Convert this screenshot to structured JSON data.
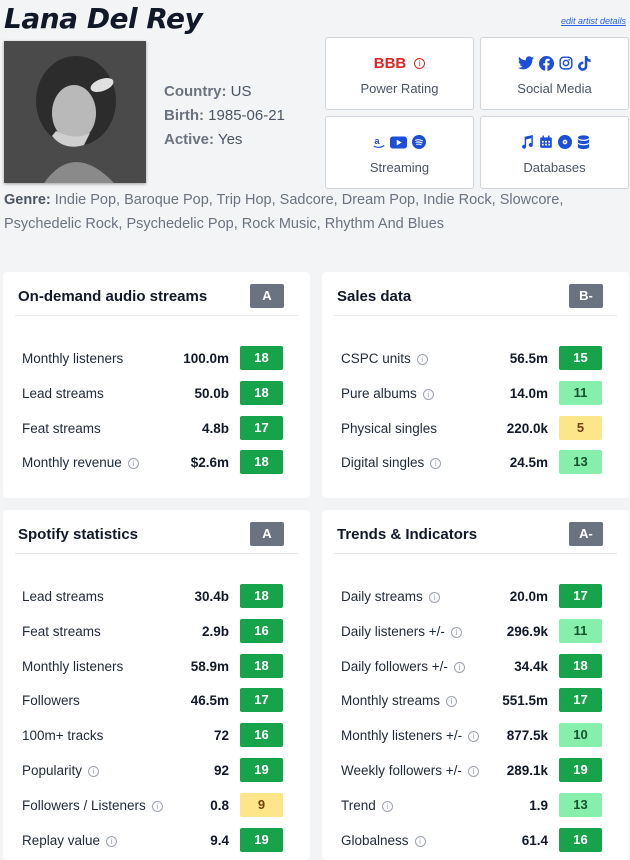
{
  "artist": {
    "name": "Lana Del Rey",
    "edit_link": "edit artist details"
  },
  "meta": {
    "country_label": "Country:",
    "country": "US",
    "birth_label": "Birth:",
    "birth": "1985-06-21",
    "active_label": "Active:",
    "active": "Yes"
  },
  "tiles": {
    "power_rating": {
      "value": "BBB",
      "label": "Power Rating"
    },
    "social_media": {
      "label": "Social Media",
      "icons": [
        "twitter-icon",
        "facebook-icon",
        "instagram-icon",
        "tiktok-icon"
      ]
    },
    "streaming": {
      "label": "Streaming",
      "icons": [
        "amazon-icon",
        "youtube-icon",
        "spotify-icon"
      ]
    },
    "databases": {
      "label": "Databases",
      "icons": [
        "music-note-icon",
        "calendar-icon",
        "disc-icon",
        "database-icon"
      ]
    }
  },
  "genre": {
    "label": "Genre:",
    "value": "Indie Pop, Baroque Pop, Trip Hop, Sadcore, Dream Pop, Indie Rock, Slowcore, Psychedelic Rock, Psychedelic Pop, Rock Music, Rhythm And Blues"
  },
  "colors": {
    "score_high": "#16a34a",
    "score_mid": "#86efac",
    "score_low": "#fde68a",
    "grade_bg": "#6b7280",
    "accent_red": "#dc2626"
  },
  "cards": {
    "audio": {
      "title": "On-demand audio streams",
      "grade": "A",
      "rows": [
        {
          "label": "Monthly listeners",
          "value": "100.0m",
          "score": "18"
        },
        {
          "label": "Lead streams",
          "value": "50.0b",
          "score": "18"
        },
        {
          "label": "Feat streams",
          "value": "4.8b",
          "score": "17"
        },
        {
          "label": "Monthly revenue",
          "value": "$2.6m",
          "score": "18"
        }
      ]
    },
    "sales": {
      "title": "Sales data",
      "grade": "B-",
      "rows": [
        {
          "label": "CSPC units",
          "value": "56.5m",
          "score": "15"
        },
        {
          "label": "Pure albums",
          "value": "14.0m",
          "score": "11"
        },
        {
          "label": "Physical singles",
          "value": "220.0k",
          "score": "5"
        },
        {
          "label": "Digital singles",
          "value": "24.5m",
          "score": "13"
        }
      ]
    },
    "spotify": {
      "title": "Spotify statistics",
      "grade": "A",
      "rows": [
        {
          "label": "Lead streams",
          "value": "30.4b",
          "score": "18"
        },
        {
          "label": "Feat streams",
          "value": "2.9b",
          "score": "16"
        },
        {
          "label": "Monthly listeners",
          "value": "58.9m",
          "score": "18"
        },
        {
          "label": "Followers",
          "value": "46.5m",
          "score": "17"
        },
        {
          "label": "100m+ tracks",
          "value": "72",
          "score": "16"
        },
        {
          "label": "Popularity",
          "value": "92",
          "score": "19"
        },
        {
          "label": "Followers / Listeners",
          "value": "0.8",
          "score": "9"
        },
        {
          "label": "Replay value",
          "value": "9.4",
          "score": "19"
        }
      ]
    },
    "trends": {
      "title": "Trends & Indicators",
      "grade": "A-",
      "rows": [
        {
          "label": "Daily streams",
          "value": "20.0m",
          "score": "17"
        },
        {
          "label": "Daily listeners +/-",
          "value": "296.9k",
          "score": "11"
        },
        {
          "label": "Daily followers +/-",
          "value": "34.4k",
          "score": "18"
        },
        {
          "label": "Monthly streams",
          "value": "551.5m",
          "score": "17"
        },
        {
          "label": "Monthly listeners +/-",
          "value": "877.5k",
          "score": "10"
        },
        {
          "label": "Weekly followers +/-",
          "value": "289.1k",
          "score": "19"
        },
        {
          "label": "Trend",
          "value": "1.9",
          "score": "13"
        },
        {
          "label": "Globalness",
          "value": "61.4",
          "score": "16"
        }
      ]
    }
  }
}
